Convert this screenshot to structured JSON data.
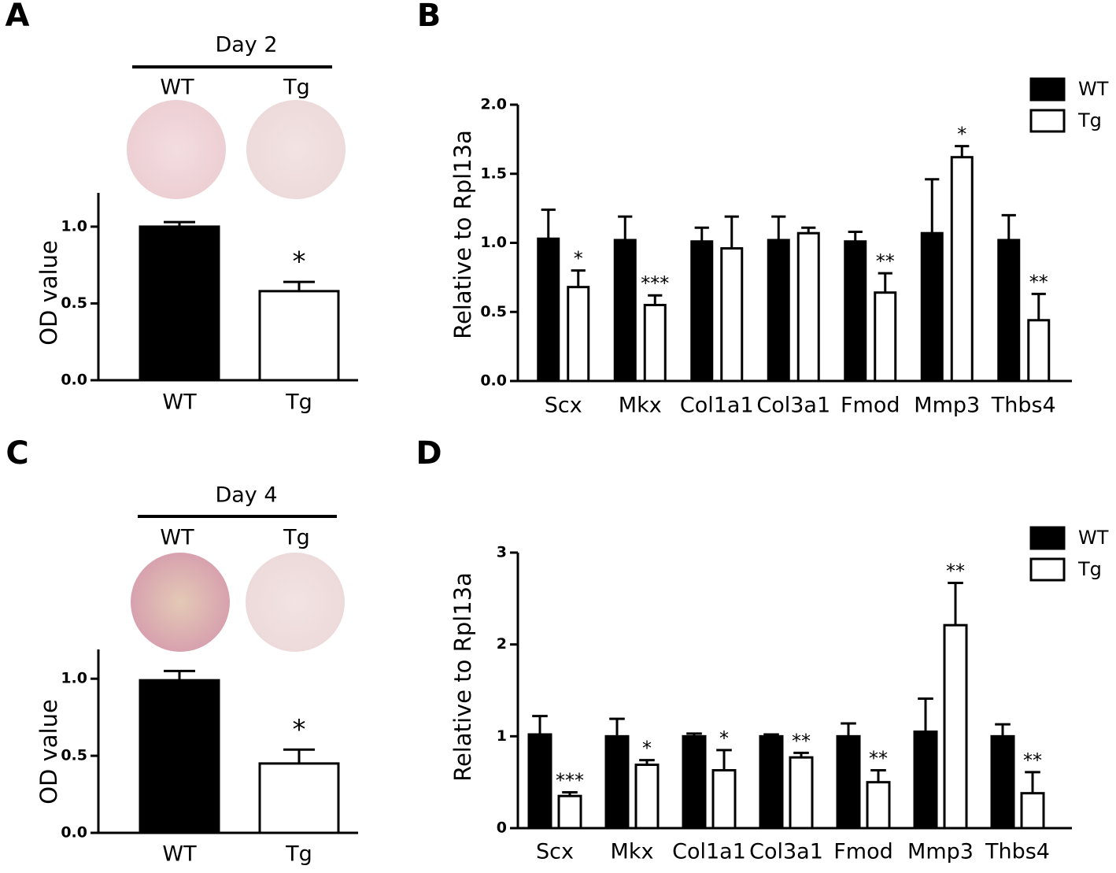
{
  "chart_data": [
    {
      "type": "bar",
      "panel_label": "A",
      "header": "Day 2",
      "image_labels": [
        "WT",
        "Tg"
      ],
      "y_label": "OD value",
      "categories": [
        "WT",
        "Tg"
      ],
      "values": [
        1.0,
        0.58
      ],
      "errors": [
        0.03,
        0.06
      ],
      "colors": [
        "#000000",
        "#ffffff"
      ],
      "annotations": [
        null,
        "*"
      ],
      "ylim": [
        0,
        1.22
      ],
      "yticks": [
        {
          "value": 0,
          "label": "0.0"
        },
        {
          "value": 0.5,
          "label": "0.5"
        },
        {
          "value": 1,
          "label": "1.0"
        }
      ]
    },
    {
      "type": "bar",
      "panel_label": "B",
      "y_label": "Relative to Rpl13a",
      "categories": [
        "Scx",
        "Mkx",
        "Col1a1",
        "Col3a1",
        "Fmod",
        "Mmp3",
        "Thbs4"
      ],
      "series": [
        {
          "name": "WT",
          "color": "#000000",
          "values": [
            1.03,
            1.02,
            1.01,
            1.02,
            1.01,
            1.07,
            1.02
          ],
          "errors": [
            0.21,
            0.17,
            0.1,
            0.17,
            0.07,
            0.39,
            0.18
          ]
        },
        {
          "name": "Tg",
          "color": "#ffffff",
          "values": [
            0.68,
            0.55,
            0.96,
            1.07,
            0.64,
            1.62,
            0.44
          ],
          "errors": [
            0.12,
            0.07,
            0.23,
            0.04,
            0.14,
            0.08,
            0.19
          ],
          "annotations": [
            "*",
            "***",
            null,
            null,
            "**",
            "*",
            "**"
          ]
        }
      ],
      "ylim": [
        0,
        2.0
      ],
      "yticks": [
        {
          "value": 0,
          "label": "0.0"
        },
        {
          "value": 0.5,
          "label": "0.5"
        },
        {
          "value": 1,
          "label": "1.0"
        },
        {
          "value": 1.5,
          "label": "1.5"
        },
        {
          "value": 2,
          "label": "2.0"
        }
      ],
      "legend": "top-right"
    },
    {
      "type": "bar",
      "panel_label": "C",
      "header": "Day 4",
      "image_labels": [
        "WT",
        "Tg"
      ],
      "y_label": "OD value",
      "categories": [
        "WT",
        "Tg"
      ],
      "values": [
        0.99,
        0.45
      ],
      "errors": [
        0.06,
        0.09
      ],
      "colors": [
        "#000000",
        "#ffffff"
      ],
      "annotations": [
        null,
        "*"
      ],
      "ylim": [
        0,
        1.19
      ],
      "yticks": [
        {
          "value": 0,
          "label": "0.0"
        },
        {
          "value": 0.5,
          "label": "0.5"
        },
        {
          "value": 1,
          "label": "1.0"
        }
      ]
    },
    {
      "type": "bar",
      "panel_label": "D",
      "y_label": "Relative to Rpl13a",
      "categories": [
        "Scx",
        "Mkx",
        "Col1a1",
        "Col3a1",
        "Fmod",
        "Mmp3",
        "Thbs4"
      ],
      "series": [
        {
          "name": "WT",
          "color": "#000000",
          "values": [
            1.02,
            1.0,
            1.0,
            1.0,
            1.0,
            1.05,
            1.0
          ],
          "errors": [
            0.2,
            0.19,
            0.03,
            0.02,
            0.14,
            0.36,
            0.13
          ]
        },
        {
          "name": "Tg",
          "color": "#ffffff",
          "values": [
            0.35,
            0.69,
            0.63,
            0.77,
            0.5,
            2.21,
            0.38
          ],
          "errors": [
            0.04,
            0.05,
            0.22,
            0.05,
            0.13,
            0.46,
            0.23
          ],
          "annotations": [
            "***",
            "*",
            "*",
            "**",
            "**",
            "**",
            "**"
          ]
        }
      ],
      "ylim": [
        0,
        3
      ],
      "yticks": [
        0,
        1,
        2,
        3
      ],
      "legend": "top-right"
    }
  ]
}
